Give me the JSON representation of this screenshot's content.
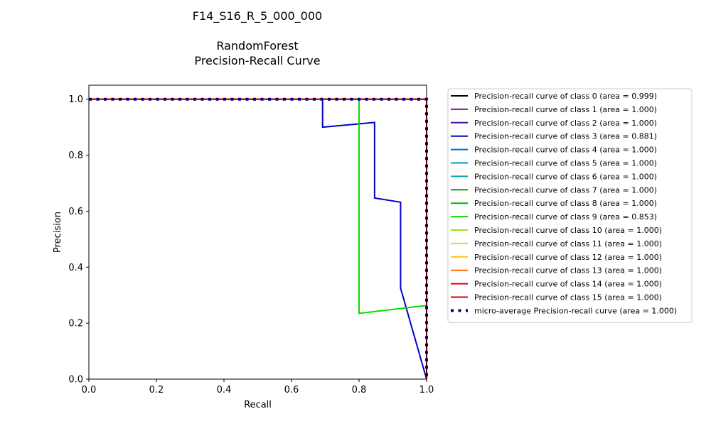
{
  "chart_data": {
    "type": "line",
    "title_lines": [
      "F14_S16_R_5_000_000",
      "",
      "RandomForest",
      "Precision-Recall Curve"
    ],
    "xlabel": "Recall",
    "ylabel": "Precision",
    "xlim": [
      0.0,
      1.0
    ],
    "ylim": [
      0.0,
      1.05
    ],
    "xticks": [
      0.0,
      0.2,
      0.4,
      0.6,
      0.8,
      1.0
    ],
    "yticks": [
      0.0,
      0.2,
      0.4,
      0.6,
      0.8,
      1.0
    ],
    "xtick_labels": [
      "0.0",
      "0.2",
      "0.4",
      "0.6",
      "0.8",
      "1.0"
    ],
    "ytick_labels": [
      "0.0",
      "0.2",
      "0.4",
      "0.6",
      "0.8",
      "1.0"
    ],
    "grid": false,
    "legend_position": "outside-right",
    "series": [
      {
        "name": "Precision-recall curve of class 0 (area = 0.999)",
        "color": "#000000",
        "dash": "solid",
        "x": [
          0.0,
          1.0,
          1.0
        ],
        "y": [
          1.0,
          1.0,
          0.0
        ]
      },
      {
        "name": "Precision-recall curve of class 1 (area = 1.000)",
        "color": "#7a1a8c",
        "dash": "solid",
        "x": [
          0.0,
          1.0,
          1.0
        ],
        "y": [
          1.0,
          1.0,
          0.0
        ]
      },
      {
        "name": "Precision-recall curve of class 2 (area = 1.000)",
        "color": "#4b0ea6",
        "dash": "solid",
        "x": [
          0.0,
          1.0,
          1.0
        ],
        "y": [
          1.0,
          1.0,
          0.0
        ]
      },
      {
        "name": "Precision-recall curve of class 3 (area = 0.881)",
        "color": "#0000c8",
        "dash": "solid",
        "x": [
          0.0,
          0.692,
          0.692,
          0.846,
          0.846,
          0.923,
          0.923,
          1.0
        ],
        "y": [
          1.0,
          1.0,
          0.9,
          0.917,
          0.647,
          0.632,
          0.325,
          0.0
        ]
      },
      {
        "name": "Precision-recall curve of class 4 (area = 1.000)",
        "color": "#0070d0",
        "dash": "solid",
        "x": [
          0.0,
          1.0,
          1.0
        ],
        "y": [
          1.0,
          1.0,
          0.0
        ]
      },
      {
        "name": "Precision-recall curve of class 5 (area = 1.000)",
        "color": "#0099c8",
        "dash": "solid",
        "x": [
          0.0,
          1.0,
          1.0
        ],
        "y": [
          1.0,
          1.0,
          0.0
        ]
      },
      {
        "name": "Precision-recall curve of class 6 (area = 1.000)",
        "color": "#00a8a0",
        "dash": "solid",
        "x": [
          0.0,
          1.0,
          1.0
        ],
        "y": [
          1.0,
          1.0,
          0.0
        ]
      },
      {
        "name": "Precision-recall curve of class 7 (area = 1.000)",
        "color": "#009a3a",
        "dash": "solid",
        "x": [
          0.0,
          1.0,
          1.0
        ],
        "y": [
          1.0,
          1.0,
          0.0
        ]
      },
      {
        "name": "Precision-recall curve of class 8 (area = 1.000)",
        "color": "#00b400",
        "dash": "solid",
        "x": [
          0.0,
          1.0,
          1.0
        ],
        "y": [
          1.0,
          1.0,
          0.0
        ]
      },
      {
        "name": "Precision-recall curve of class 9 (area = 0.853)",
        "color": "#00e000",
        "dash": "solid",
        "x": [
          0.0,
          0.8,
          0.8,
          1.0,
          1.0
        ],
        "y": [
          1.0,
          1.0,
          0.235,
          0.263,
          0.0
        ]
      },
      {
        "name": "Precision-recall curve of class 10 (area = 1.000)",
        "color": "#88f000",
        "dash": "solid",
        "x": [
          0.0,
          1.0,
          1.0
        ],
        "y": [
          1.0,
          1.0,
          0.0
        ]
      },
      {
        "name": "Precision-recall curve of class 11 (area = 1.000)",
        "color": "#dce000",
        "dash": "solid",
        "x": [
          0.0,
          1.0,
          1.0
        ],
        "y": [
          1.0,
          1.0,
          0.0
        ]
      },
      {
        "name": "Precision-recall curve of class 12 (area = 1.000)",
        "color": "#ffc800",
        "dash": "solid",
        "x": [
          0.0,
          1.0,
          1.0
        ],
        "y": [
          1.0,
          1.0,
          0.0
        ]
      },
      {
        "name": "Precision-recall curve of class 13 (area = 1.000)",
        "color": "#ff6a00",
        "dash": "solid",
        "x": [
          0.0,
          1.0,
          1.0
        ],
        "y": [
          1.0,
          1.0,
          0.0
        ]
      },
      {
        "name": "Precision-recall curve of class 14 (area = 1.000)",
        "color": "#e00000",
        "dash": "solid",
        "x": [
          0.0,
          1.0,
          1.0
        ],
        "y": [
          1.0,
          1.0,
          0.0
        ]
      },
      {
        "name": "Precision-recall curve of class 15 (area = 1.000)",
        "color": "#cc0000",
        "dash": "solid",
        "x": [
          0.0,
          1.0,
          1.0
        ],
        "y": [
          1.0,
          1.0,
          0.0
        ]
      },
      {
        "name": "micro-average Precision-recall curve (area = 1.000)",
        "color": "#000080",
        "dash": "dotted",
        "x": [
          0.0,
          1.0,
          1.0
        ],
        "y": [
          1.0,
          1.0,
          0.0
        ]
      }
    ]
  }
}
